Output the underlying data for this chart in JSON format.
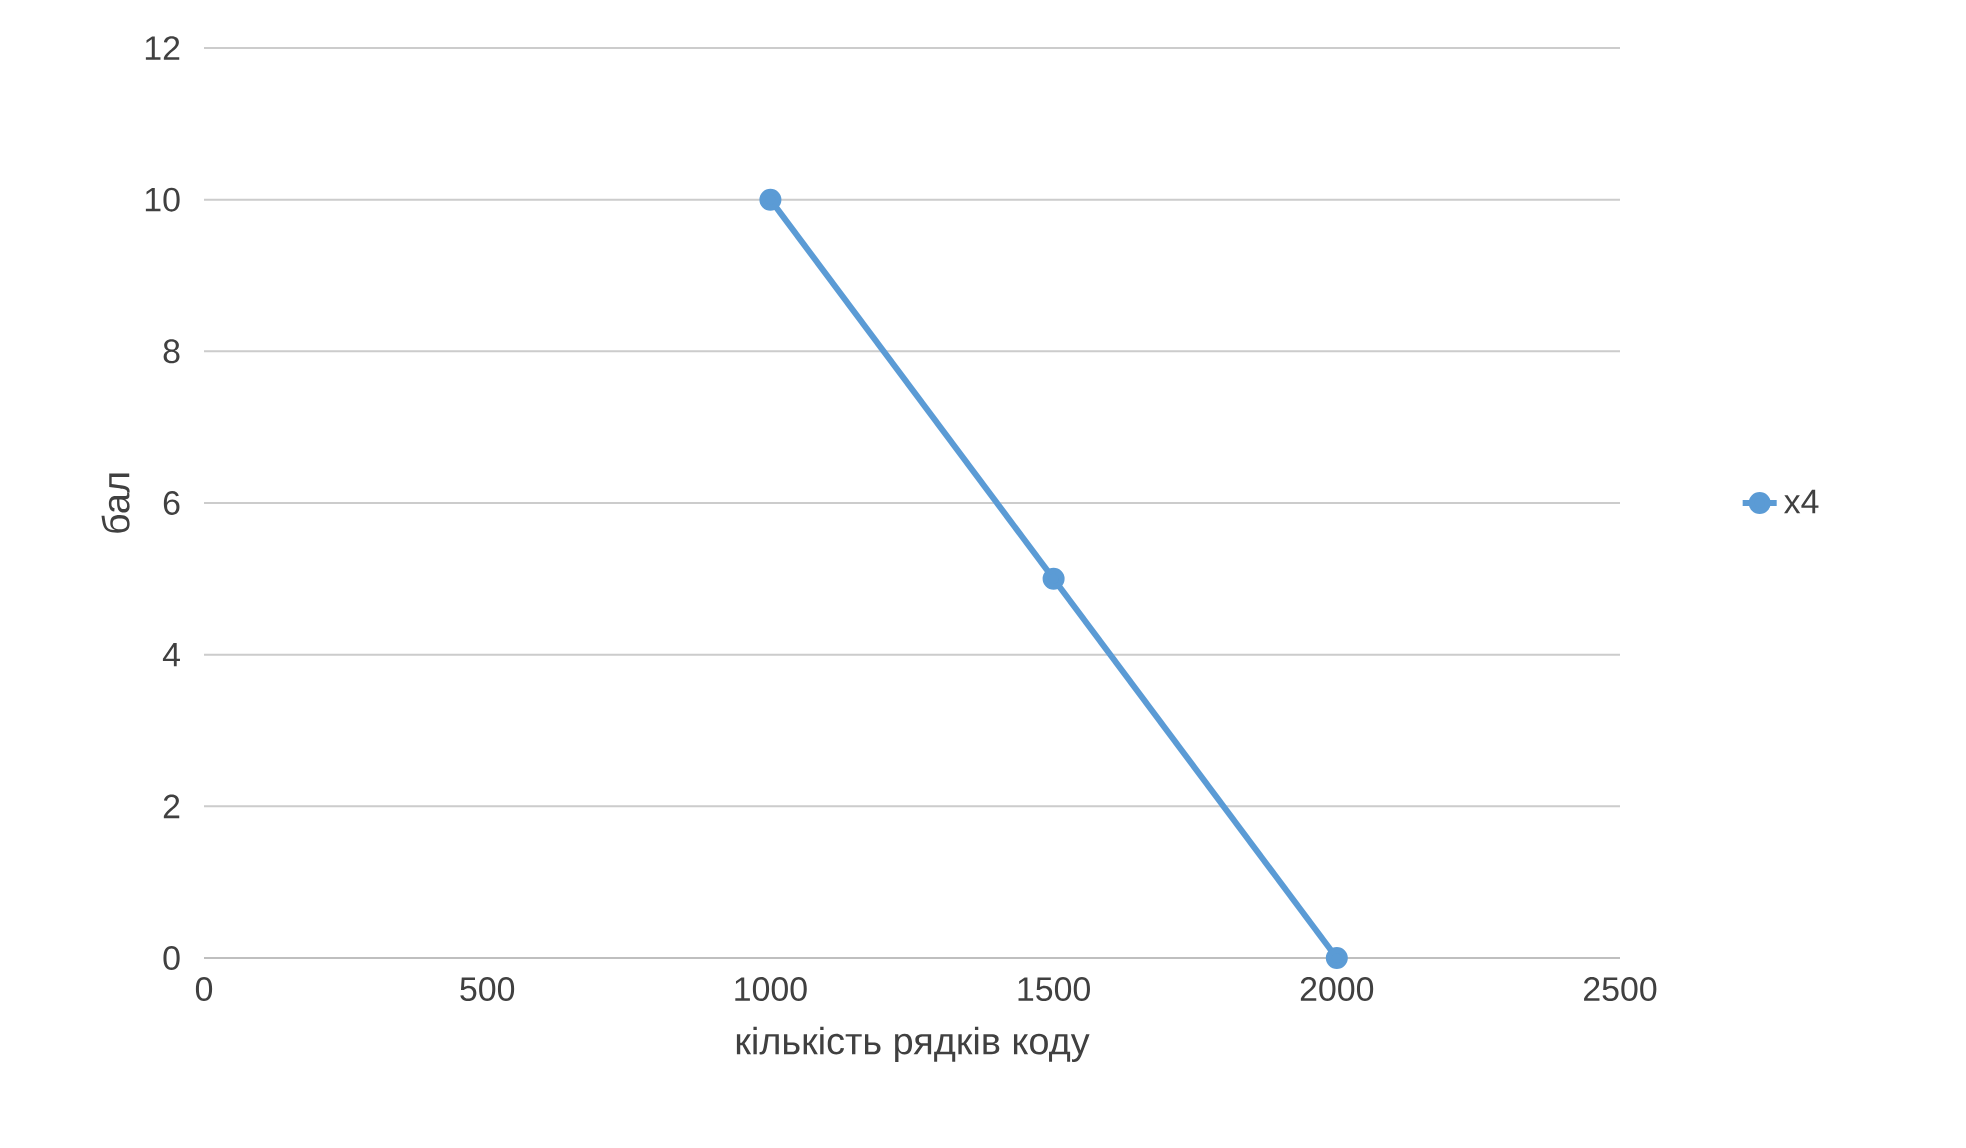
{
  "chart_data": {
    "type": "line",
    "xlabel": "кількість рядків коду",
    "ylabel": "бал",
    "x": [
      1000,
      1500,
      2000
    ],
    "series": [
      {
        "name": "x4",
        "color": "#5b9bd5",
        "values": [
          10,
          5,
          0
        ]
      }
    ],
    "xlim": [
      0,
      2500
    ],
    "xticks": [
      0,
      500,
      1000,
      1500,
      2000,
      2500
    ],
    "ylim": [
      0,
      12
    ],
    "yticks": [
      0,
      2,
      4,
      6,
      8,
      10,
      12
    ],
    "grid": "y",
    "legend": "right",
    "marker": "circle",
    "line_style": "solid"
  }
}
